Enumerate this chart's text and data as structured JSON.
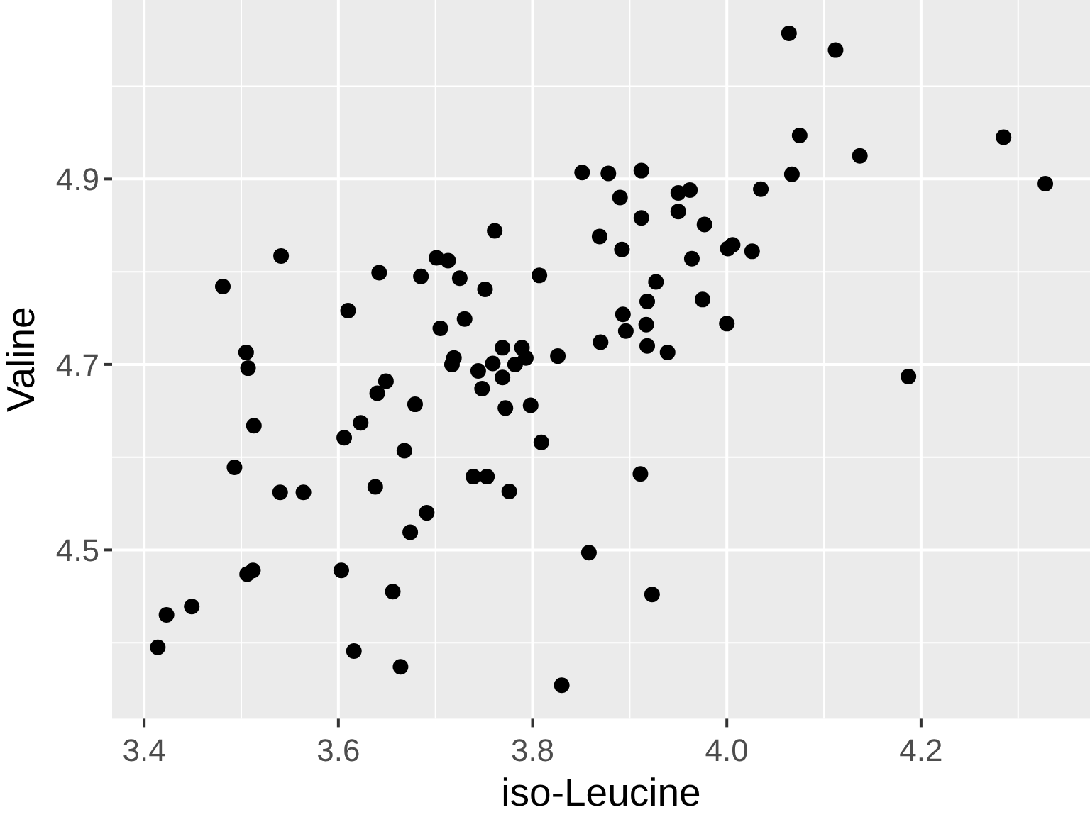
{
  "chart_data": {
    "type": "scatter",
    "xlabel": "iso-Leucine",
    "ylabel": "Valine",
    "xlim": [
      3.367,
      4.374
    ],
    "ylim": [
      4.318,
      5.093
    ],
    "xticks": [
      3.4,
      3.6,
      3.8,
      {
        "value": 4,
        "label": "4.0"
      },
      4.2
    ],
    "yticks": [
      4.5,
      4.7,
      4.9
    ],
    "grid": true,
    "marker": "circle",
    "color": "#000000",
    "x": [
      4.064,
      4.112,
      4.075,
      4.137,
      4.285,
      4.328,
      4.067,
      4.035,
      4.026,
      4.001,
      4.006,
      3.851,
      3.878,
      3.912,
      3.89,
      3.95,
      3.962,
      3.95,
      3.912,
      3.977,
      3.869,
      3.892,
      3.964,
      3.761,
      3.701,
      3.713,
      3.685,
      3.725,
      3.541,
      3.481,
      3.642,
      3.61,
      3.705,
      3.505,
      3.507,
      3.751,
      3.807,
      3.73,
      3.769,
      3.789,
      3.793,
      3.826,
      3.719,
      3.717,
      3.744,
      3.759,
      3.782,
      3.927,
      3.918,
      3.975,
      3.893,
      3.896,
      3.917,
      4.0,
      3.87,
      3.918,
      3.939,
      3.769,
      3.748,
      3.772,
      3.798,
      3.809,
      3.739,
      3.753,
      3.776,
      3.691,
      3.911,
      3.858,
      3.923,
      3.83,
      4.187,
      3.513,
      3.493,
      3.54,
      3.564,
      3.506,
      3.512,
      3.449,
      3.423,
      3.414,
      3.603,
      3.616,
      3.664,
      3.656,
      3.638,
      3.674,
      3.668,
      3.606,
      3.623,
      3.64,
      3.649,
      3.679
    ],
    "values": [
      5.057,
      5.039,
      4.947,
      4.925,
      4.945,
      4.895,
      4.905,
      4.889,
      4.822,
      4.825,
      4.829,
      4.907,
      4.906,
      4.909,
      4.88,
      4.885,
      4.888,
      4.865,
      4.858,
      4.851,
      4.838,
      4.824,
      4.814,
      4.844,
      4.815,
      4.812,
      4.795,
      4.793,
      4.817,
      4.784,
      4.799,
      4.758,
      4.739,
      4.713,
      4.696,
      4.781,
      4.796,
      4.749,
      4.718,
      4.718,
      4.707,
      4.709,
      4.707,
      4.7,
      4.693,
      4.701,
      4.7,
      4.789,
      4.768,
      4.77,
      4.754,
      4.736,
      4.743,
      4.744,
      4.724,
      4.72,
      4.713,
      4.686,
      4.674,
      4.653,
      4.656,
      4.616,
      4.579,
      4.579,
      4.563,
      4.54,
      4.582,
      4.497,
      4.452,
      4.354,
      4.687,
      4.634,
      4.589,
      4.562,
      4.562,
      4.474,
      4.478,
      4.439,
      4.43,
      4.395,
      4.478,
      4.391,
      4.374,
      4.455,
      4.568,
      4.519,
      4.607,
      4.621,
      4.637,
      4.669,
      4.682,
      4.657
    ]
  }
}
